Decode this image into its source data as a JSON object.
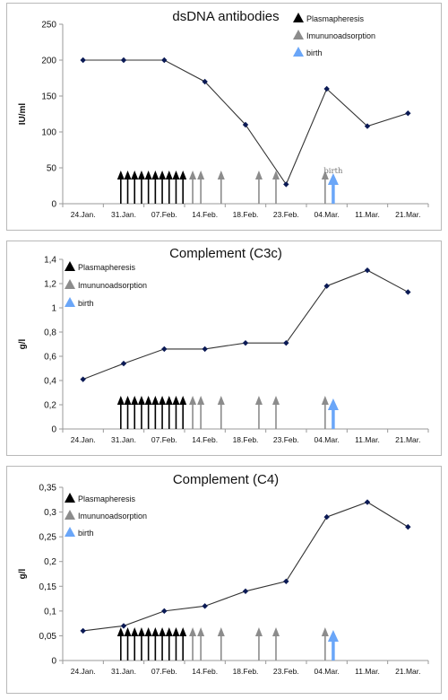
{
  "chart_data": [
    {
      "type": "line",
      "title": "dsDNA antibodies",
      "ylabel": "IU/ml",
      "ylim": [
        0,
        250
      ],
      "yticks": [
        "0",
        "50",
        "100",
        "150",
        "200",
        "250"
      ],
      "categories": [
        "24.Jan.",
        "31.Jan.",
        "07.Feb.",
        "14.Feb.",
        "18.Feb.",
        "23.Feb.",
        "04.Mar.",
        "11.Mar.",
        "21.Mar."
      ],
      "series": [
        {
          "values": [
            200,
            200,
            200,
            170,
            110,
            27,
            160,
            108,
            126
          ]
        }
      ],
      "legend": {
        "position": "top-right",
        "entries": [
          "Plasmapheresis",
          "Imununoadsorption",
          "birth"
        ]
      },
      "annotation": "birth",
      "grid": false
    },
    {
      "type": "line",
      "title": "Complement (C3c)",
      "ylabel": "g/l",
      "ylim": [
        0,
        1.4
      ],
      "yticks": [
        "0",
        "0,2",
        "0,4",
        "0,6",
        "0,8",
        "1",
        "1,2",
        "1,4"
      ],
      "categories": [
        "24.Jan.",
        "31.Jan.",
        "07.Feb.",
        "14.Feb.",
        "18.Feb.",
        "23.Feb.",
        "04.Mar.",
        "11.Mar.",
        "21.Mar."
      ],
      "series": [
        {
          "values": [
            0.41,
            0.54,
            0.66,
            0.66,
            0.71,
            0.71,
            1.18,
            1.31,
            1.13
          ]
        }
      ],
      "legend": {
        "position": "top-left",
        "entries": [
          "Plasmapheresis",
          "Imununoadsorption",
          "birth"
        ]
      },
      "grid": false
    },
    {
      "type": "line",
      "title": "Complement (C4)",
      "ylabel": "g/l",
      "ylim": [
        0,
        0.35
      ],
      "yticks": [
        "0",
        "0,05",
        "0,1",
        "0,15",
        "0,2",
        "0,25",
        "0,3",
        "0,35"
      ],
      "categories": [
        "24.Jan.",
        "31.Jan.",
        "07.Feb.",
        "14.Feb.",
        "18.Feb.",
        "23.Feb.",
        "04.Mar.",
        "11.Mar.",
        "21.Mar."
      ],
      "series": [
        {
          "values": [
            0.06,
            0.07,
            0.1,
            0.11,
            0.14,
            0.16,
            0.29,
            0.32,
            0.27
          ]
        }
      ],
      "legend": {
        "position": "top-left",
        "entries": [
          "Plasmapheresis",
          "Imununoadsorption",
          "birth"
        ]
      },
      "grid": false
    }
  ],
  "markers": {
    "plasmapheresis_positions": [
      0.93,
      1.1,
      1.27,
      1.44,
      1.61,
      1.78,
      1.95,
      2.12,
      2.29,
      2.46
    ],
    "immunoadsorption_positions": [
      2.7,
      2.9,
      3.4,
      4.33,
      4.75,
      5.96
    ],
    "birth_position": 6.16
  },
  "colors": {
    "line": "#333333",
    "point": "#0b1a55",
    "plasmapheresis": "#000000",
    "immunoadsorption": "#8c8c8c",
    "birth": "#6aa6f8",
    "axis": "#9a9a9a",
    "frame": "#b9b9b9"
  }
}
